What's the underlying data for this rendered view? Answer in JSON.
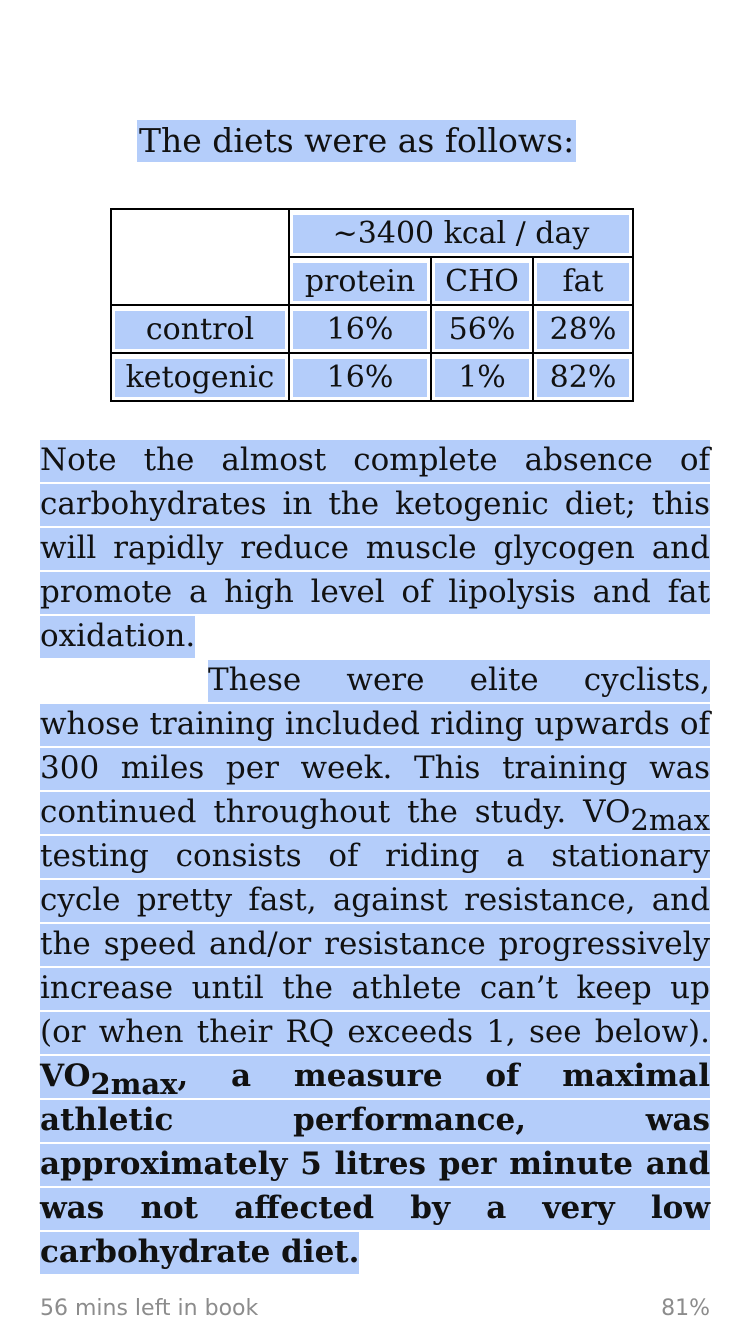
{
  "intro": "The diets were as follows:",
  "table": {
    "header_span": "~3400 kcal / day",
    "columns": [
      "protein",
      "CHO",
      "fat"
    ],
    "rows": [
      {
        "label": "control",
        "values": [
          "16%",
          "56%",
          "28%"
        ]
      },
      {
        "label": "ketogenic",
        "values": [
          "16%",
          "1%",
          "82%"
        ]
      }
    ]
  },
  "paragraph1": "Note the almost complete absence of carbohydrates in the ketogenic diet; this will rapidly reduce muscle glycogen and promote a high level of lipolysis and fat oxidation.",
  "paragraph2": {
    "part1": "These were elite cyclists, whose training included riding upwards of 300 miles per week. This training was continued throughout the study. ",
    "vo2_base": "VO",
    "vo2_sub": "2max",
    "part2": " testing consists of riding a stationary cycle pretty fast, against resistance, and the speed and/or resistance progressively increase until the athlete can’t keep up (or when their RQ exceeds 1, see below). ",
    "bold_vo2_base": "VO",
    "bold_vo2_sub": "2max",
    "bold_rest": ", a measure of maximal athletic performance, was approximately 5 litres per minute and was not affected by a very low carbohydrate diet."
  },
  "footer": {
    "time_left": "56 mins left in book",
    "progress": "81%"
  }
}
